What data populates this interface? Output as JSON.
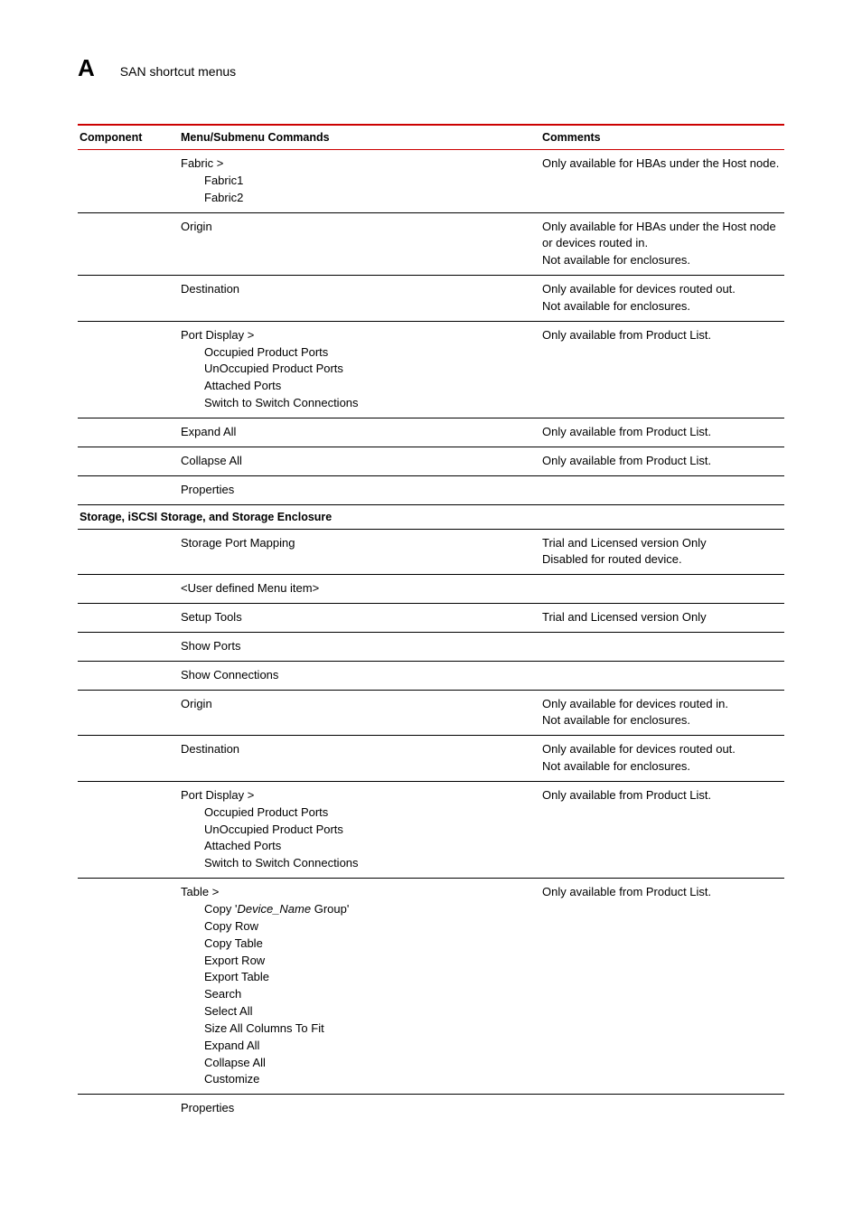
{
  "header": {
    "letter": "A",
    "title": "SAN shortcut menus"
  },
  "columns": {
    "component": "Component",
    "menu": "Menu/Submenu Commands",
    "comments": "Comments"
  },
  "rows": [
    {
      "menu": [
        {
          "text": "Fabric >",
          "indent": 0
        },
        {
          "text": "Fabric1",
          "indent": 1
        },
        {
          "text": "Fabric2",
          "indent": 1
        }
      ],
      "comments": [
        "Only available for HBAs under the Host node."
      ]
    },
    {
      "menu": [
        {
          "text": "Origin",
          "indent": 0
        }
      ],
      "comments": [
        "Only available for HBAs under the Host node or devices routed in.",
        "Not available for enclosures."
      ]
    },
    {
      "menu": [
        {
          "text": "Destination",
          "indent": 0
        }
      ],
      "comments": [
        "Only available for devices routed out.",
        "Not available for enclosures."
      ]
    },
    {
      "menu": [
        {
          "text": "Port Display >",
          "indent": 0
        },
        {
          "text": "Occupied Product Ports",
          "indent": 1
        },
        {
          "text": "UnOccupied Product Ports",
          "indent": 1
        },
        {
          "text": "Attached Ports",
          "indent": 1
        },
        {
          "text": "Switch to Switch Connections",
          "indent": 1
        }
      ],
      "comments": [
        "Only available from Product List."
      ]
    },
    {
      "menu": [
        {
          "text": "Expand All",
          "indent": 0
        }
      ],
      "comments": [
        "Only available from Product List."
      ]
    },
    {
      "menu": [
        {
          "text": "Collapse All",
          "indent": 0
        }
      ],
      "comments": [
        "Only available from Product List."
      ]
    },
    {
      "menu": [
        {
          "text": "Properties",
          "indent": 0
        }
      ],
      "comments": []
    },
    {
      "section": "Storage, iSCSI Storage, and Storage Enclosure"
    },
    {
      "menu": [
        {
          "text": "Storage Port Mapping",
          "indent": 0
        }
      ],
      "comments": [
        "Trial and Licensed version Only",
        "Disabled for routed device."
      ]
    },
    {
      "menu": [
        {
          "text": "<User defined Menu item>",
          "indent": 0
        }
      ],
      "comments": []
    },
    {
      "menu": [
        {
          "text": "Setup Tools",
          "indent": 0
        }
      ],
      "comments": [
        "Trial and Licensed version Only"
      ]
    },
    {
      "menu": [
        {
          "text": "Show Ports",
          "indent": 0
        }
      ],
      "comments": []
    },
    {
      "menu": [
        {
          "text": "Show Connections",
          "indent": 0
        }
      ],
      "comments": []
    },
    {
      "menu": [
        {
          "text": "Origin",
          "indent": 0
        }
      ],
      "comments": [
        "Only available for devices routed in.",
        "Not available for enclosures."
      ]
    },
    {
      "menu": [
        {
          "text": "Destination",
          "indent": 0
        }
      ],
      "comments": [
        "Only available for devices routed out.",
        "Not available for enclosures."
      ]
    },
    {
      "menu": [
        {
          "text": "Port Display >",
          "indent": 0
        },
        {
          "text": "Occupied Product Ports",
          "indent": 1
        },
        {
          "text": "UnOccupied Product Ports",
          "indent": 1
        },
        {
          "text": "Attached Ports",
          "indent": 1
        },
        {
          "text": "Switch to Switch Connections",
          "indent": 1
        }
      ],
      "comments": [
        "Only available from Product List."
      ]
    },
    {
      "menu": [
        {
          "text": "Table >",
          "indent": 0
        },
        {
          "html": "Copy '<span class=\"italic\">Device_Name</span> Group'",
          "indent": 1
        },
        {
          "text": "Copy Row",
          "indent": 1
        },
        {
          "text": "Copy Table",
          "indent": 1
        },
        {
          "text": "Export Row",
          "indent": 1
        },
        {
          "text": "Export Table",
          "indent": 1
        },
        {
          "text": "Search",
          "indent": 1
        },
        {
          "text": "Select All",
          "indent": 1
        },
        {
          "text": "Size All Columns To Fit",
          "indent": 1
        },
        {
          "text": "Expand All",
          "indent": 1
        },
        {
          "text": "Collapse All",
          "indent": 1
        },
        {
          "text": "Customize",
          "indent": 1
        }
      ],
      "comments": [
        "Only available from Product List."
      ]
    },
    {
      "menu": [
        {
          "text": "Properties",
          "indent": 0
        }
      ],
      "comments": [],
      "noRule": true
    }
  ]
}
